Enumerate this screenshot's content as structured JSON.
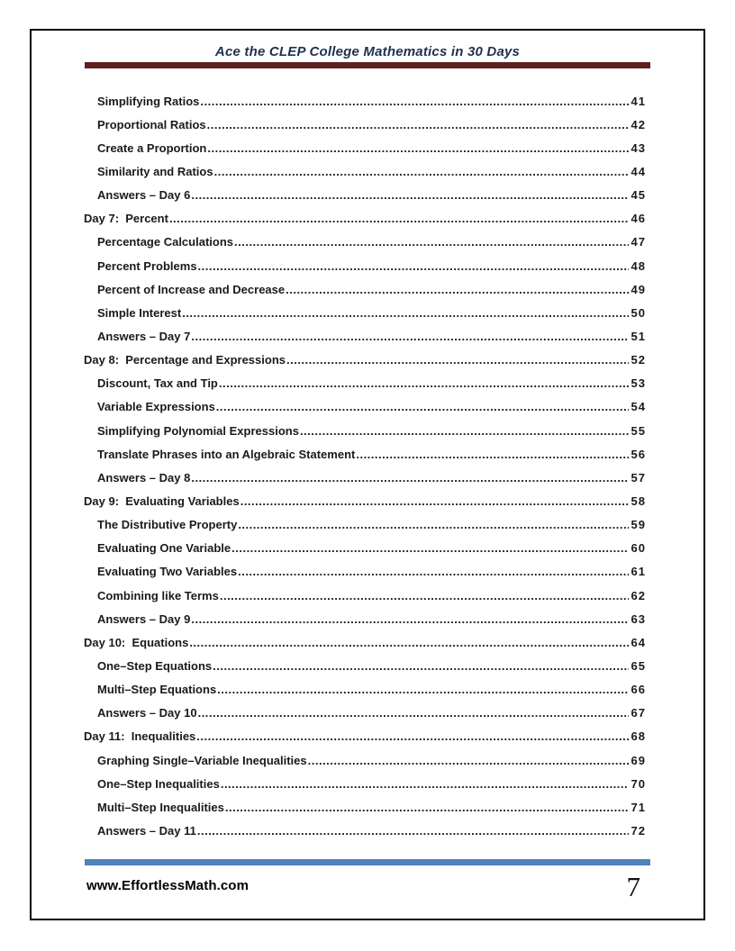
{
  "colors": {
    "header_bar_color": "#5E2222",
    "footer_bar_color": "#4F81BD",
    "title_color": "#1F3050"
  },
  "header": {
    "title": "Ace the CLEP College Mathematics in 30 Days"
  },
  "footer": {
    "website": "www.EffortlessMath.com",
    "page_number": "7"
  },
  "toc": {
    "entries": [
      {
        "level": 1,
        "label": "Simplifying Ratios",
        "page": "41"
      },
      {
        "level": 1,
        "label": "Proportional Ratios",
        "page": "42"
      },
      {
        "level": 1,
        "label": "Create a Proportion",
        "page": "43"
      },
      {
        "level": 1,
        "label": "Similarity and Ratios",
        "page": "44"
      },
      {
        "level": 1,
        "label": "Answers – Day 6",
        "page": "45"
      },
      {
        "level": 0,
        "label": "Day 7:  Percent",
        "page": "46"
      },
      {
        "level": 1,
        "label": "Percentage Calculations",
        "page": "47"
      },
      {
        "level": 1,
        "label": "Percent Problems",
        "page": "48"
      },
      {
        "level": 1,
        "label": "Percent of Increase and Decrease",
        "page": "49"
      },
      {
        "level": 1,
        "label": "Simple Interest",
        "page": "50"
      },
      {
        "level": 1,
        "label": "Answers – Day 7",
        "page": "51"
      },
      {
        "level": 0,
        "label": "Day 8:  Percentage and Expressions",
        "page": "52"
      },
      {
        "level": 1,
        "label": "Discount, Tax and Tip",
        "page": "53"
      },
      {
        "level": 1,
        "label": "Variable Expressions",
        "page": "54"
      },
      {
        "level": 1,
        "label": "Simplifying Polynomial Expressions",
        "page": "55"
      },
      {
        "level": 1,
        "label": "Translate Phrases into an Algebraic Statement",
        "page": "56"
      },
      {
        "level": 1,
        "label": "Answers – Day 8",
        "page": "57"
      },
      {
        "level": 0,
        "label": "Day 9:  Evaluating Variables",
        "page": "58"
      },
      {
        "level": 1,
        "label": "The Distributive Property",
        "page": "59"
      },
      {
        "level": 1,
        "label": "Evaluating One Variable",
        "page": "60"
      },
      {
        "level": 1,
        "label": "Evaluating Two Variables",
        "page": "61"
      },
      {
        "level": 1,
        "label": "Combining like Terms",
        "page": "62"
      },
      {
        "level": 1,
        "label": "Answers – Day 9",
        "page": "63"
      },
      {
        "level": 0,
        "label": "Day 10:  Equations",
        "page": "64"
      },
      {
        "level": 1,
        "label": "One–Step Equations",
        "page": "65"
      },
      {
        "level": 1,
        "label": "Multi–Step Equations",
        "page": "66"
      },
      {
        "level": 1,
        "label": "Answers – Day 10",
        "page": "67"
      },
      {
        "level": 0,
        "label": "Day 11:  Inequalities",
        "page": "68"
      },
      {
        "level": 1,
        "label": "Graphing Single–Variable Inequalities",
        "page": "69"
      },
      {
        "level": 1,
        "label": "One–Step Inequalities",
        "page": "70"
      },
      {
        "level": 1,
        "label": "Multi–Step Inequalities",
        "page": "71"
      },
      {
        "level": 1,
        "label": "Answers – Day 11",
        "page": "72"
      }
    ]
  }
}
